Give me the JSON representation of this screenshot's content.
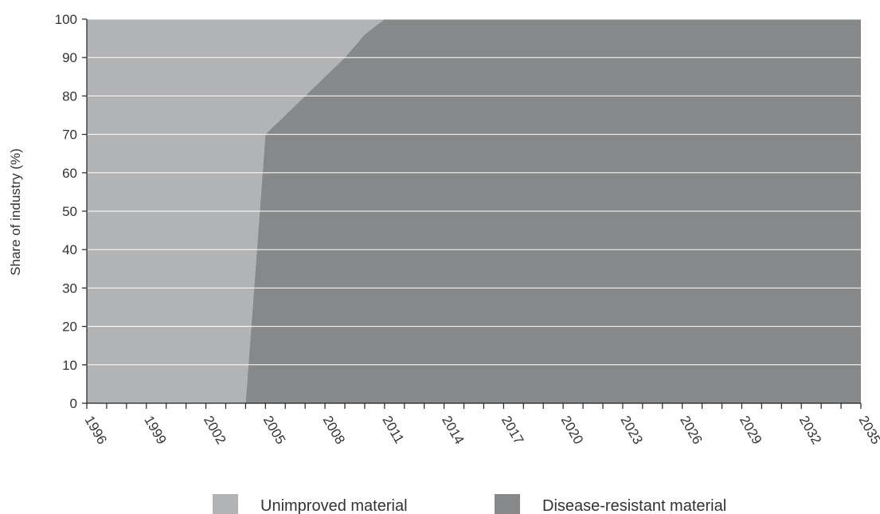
{
  "chart_data": {
    "type": "area",
    "stacked": true,
    "title": "",
    "xlabel": "",
    "ylabel": "Share of industry (%)",
    "xlim": [
      1996,
      2035
    ],
    "ylim": [
      0,
      100
    ],
    "y_ticks": [
      0,
      10,
      20,
      30,
      40,
      50,
      60,
      70,
      80,
      90,
      100
    ],
    "x_tick_labels": [
      "1996",
      "1999",
      "2002",
      "2005",
      "2008",
      "2011",
      "2014",
      "2017",
      "2020",
      "2023",
      "2026",
      "2029",
      "2032",
      "2035"
    ],
    "grid": "horizontal",
    "legend_position": "bottom",
    "x": [
      1996,
      2004,
      2005,
      2006,
      2007,
      2008,
      2009,
      2010,
      2011,
      2035
    ],
    "series": [
      {
        "name": "Disease-resistant material",
        "color": "#87888a",
        "values": [
          0,
          0,
          70,
          75,
          80,
          85,
          90,
          96,
          100,
          100
        ]
      },
      {
        "name": "Unimproved material",
        "color": "#b2b3b5",
        "values": [
          100,
          100,
          30,
          25,
          20,
          15,
          10,
          4,
          0,
          0
        ]
      }
    ]
  }
}
